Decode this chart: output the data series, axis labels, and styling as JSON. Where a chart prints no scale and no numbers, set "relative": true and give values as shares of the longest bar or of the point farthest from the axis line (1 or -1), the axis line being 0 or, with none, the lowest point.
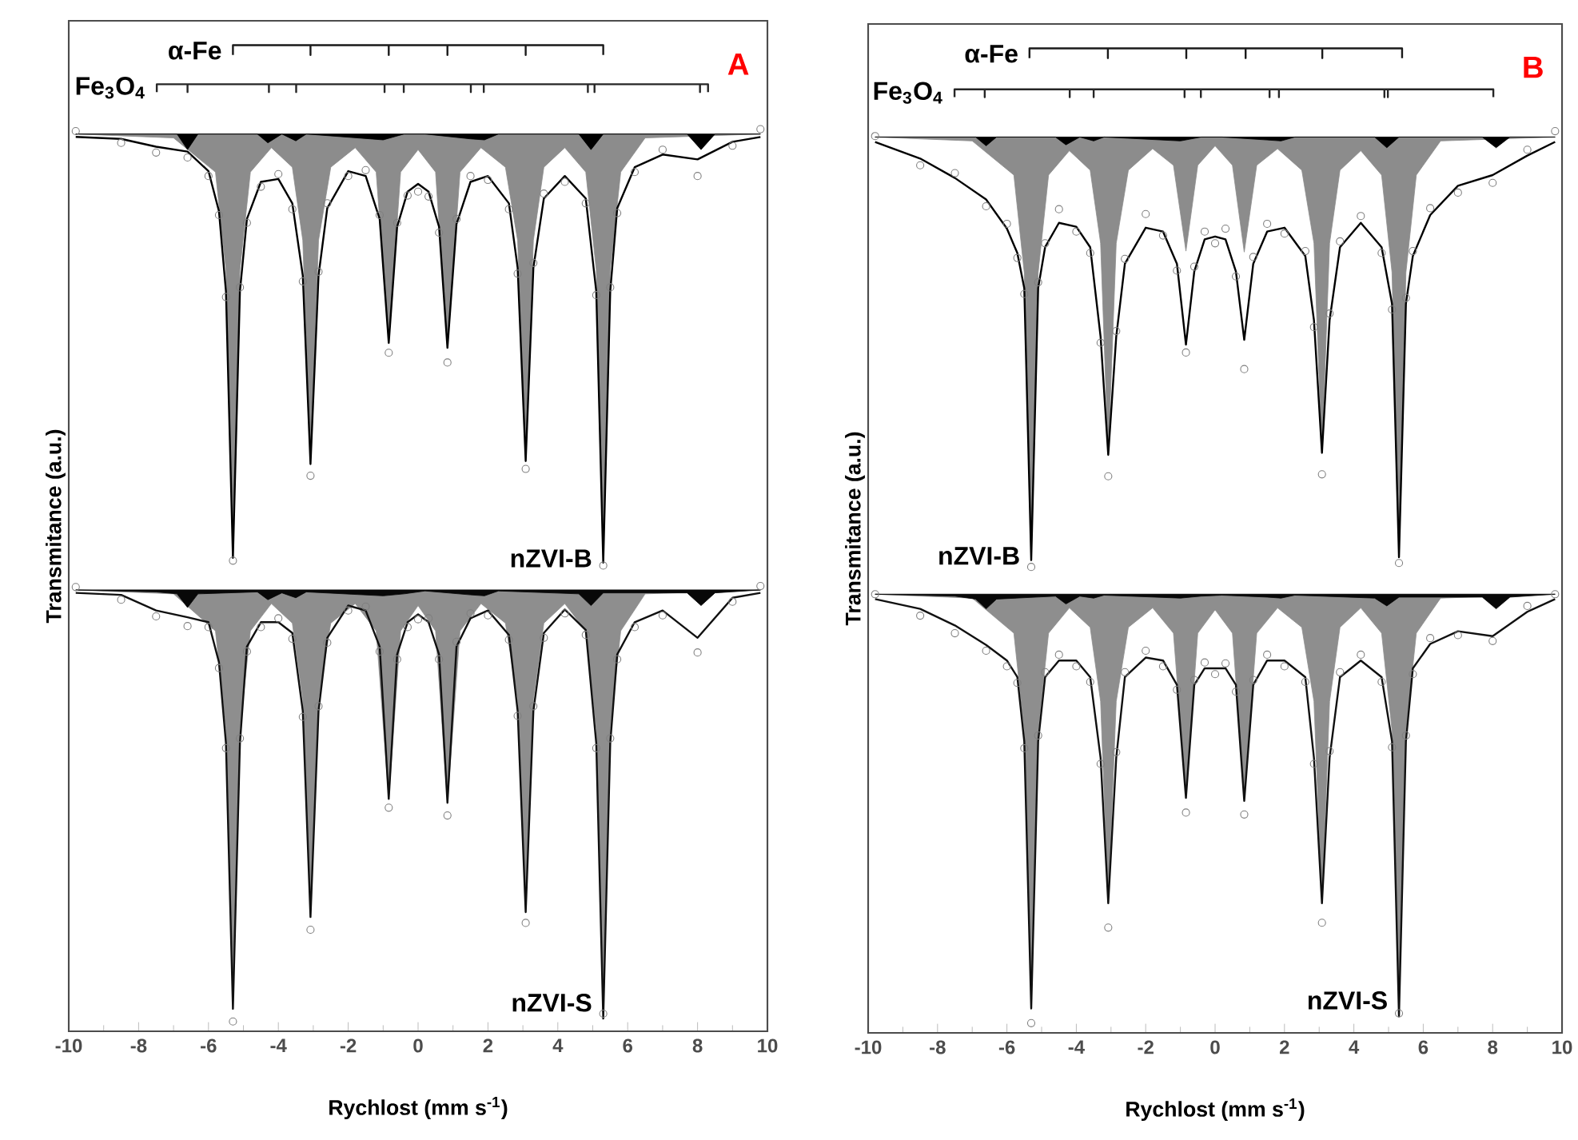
{
  "chart_data": [
    {
      "type": "line",
      "title": "A",
      "xlabel": "Rychlost (mm s$^{-1}$)",
      "ylabel": "Transmitance (a.u.)",
      "relative": true,
      "tick_labels": "x",
      "xlim": [
        -10,
        10
      ],
      "xticks": [
        -10,
        -8,
        -6,
        -4,
        -2,
        0,
        2,
        4,
        6,
        8,
        10
      ],
      "x": [
        -9.8,
        -8.5,
        -7.5,
        -6.6,
        -6.0,
        -5.7,
        -5.5,
        -5.3,
        -5.1,
        -4.9,
        -4.5,
        -4.0,
        -3.6,
        -3.3,
        -3.08,
        -2.85,
        -2.6,
        -2.0,
        -1.5,
        -1.1,
        -0.84,
        -0.6,
        -0.3,
        0,
        0.3,
        0.6,
        0.84,
        1.1,
        1.5,
        2.0,
        2.6,
        2.85,
        3.08,
        3.3,
        3.6,
        4.2,
        4.8,
        5.1,
        5.3,
        5.5,
        5.7,
        6.2,
        7.0,
        8.0,
        9.0,
        9.8
      ],
      "series": [
        {
          "name": "α-Fe",
          "type": "line",
          "marker": "none",
          "color": "#1a1a1a",
          "x": [
            -5.3,
            -5.3,
            -3.08,
            -3.08,
            -3.08,
            -0.84,
            -0.84,
            -0.84,
            0.84,
            0.84,
            0.84,
            3.08,
            3.08,
            3.08,
            5.3,
            5.3
          ],
          "values": [
            0.99,
            1,
            1,
            0.99,
            1,
            1,
            0.99,
            1,
            1,
            0.99,
            1,
            1,
            0.99,
            1,
            1,
            0.99
          ]
        },
        {
          "name": "Fe$_{3}$O$_{4}$",
          "type": "line",
          "marker": "none",
          "color": "#262626",
          "x": [
            -7.48,
            -7.48,
            -6.6,
            -6.6,
            -6.6,
            -4.27,
            -4.27,
            -4.27,
            -3.49,
            -3.49,
            -3.49,
            -0.96,
            -0.96,
            -0.96,
            -0.41,
            -0.41,
            -0.41,
            1.51,
            1.51,
            1.51,
            1.88,
            1.88,
            1.88,
            4.86,
            4.86,
            4.86,
            5.05,
            5.05,
            5.05,
            8.07,
            8.07,
            8.07,
            8.3,
            8.3
          ],
          "values": [
            0.952,
            0.96,
            0.96,
            0.952,
            0.96,
            0.96,
            0.952,
            0.96,
            0.96,
            0.952,
            0.96,
            0.96,
            0.952,
            0.96,
            0.96,
            0.952,
            0.96,
            0.96,
            0.952,
            0.96,
            0.96,
            0.952,
            0.96,
            0.96,
            0.952,
            0.96,
            0.96,
            0.952,
            0.96,
            0.96,
            0.952,
            0.96,
            0.96,
            0.952
          ]
        },
        {
          "type": "area",
          "color": "#8c8c8c",
          "x": [
            -9.8,
            -7.0,
            -5.8,
            -5.5,
            -5.3,
            -5.1,
            -4.8,
            -4.2,
            -3.6,
            -3.3,
            -3.08,
            -2.85,
            -2.5,
            -1.8,
            -1.2,
            -0.84,
            -0.5,
            0,
            0.5,
            0.84,
            1.2,
            1.8,
            2.5,
            2.85,
            3.08,
            3.3,
            3.6,
            4.2,
            4.8,
            5.1,
            5.3,
            5.5,
            5.8,
            6.5,
            9.8
          ],
          "values": [
            0.909,
            0.905,
            0.87,
            0.77,
            0.475,
            0.77,
            0.87,
            0.895,
            0.875,
            0.8,
            0.571,
            0.8,
            0.875,
            0.895,
            0.87,
            0.695,
            0.87,
            0.893,
            0.87,
            0.69,
            0.87,
            0.895,
            0.875,
            0.8,
            0.574,
            0.8,
            0.875,
            0.895,
            0.87,
            0.77,
            0.47,
            0.77,
            0.87,
            0.905,
            0.909
          ]
        },
        {
          "type": "area",
          "color": "#000000",
          "x": [
            -9.8,
            -7.5,
            -6.9,
            -6.6,
            -6.3,
            -4.6,
            -4.3,
            -3.9,
            -3.5,
            -3.2,
            -1.0,
            -0.4,
            0.2,
            1.5,
            1.9,
            2.3,
            4.6,
            4.95,
            5.3,
            7.7,
            8.1,
            8.5,
            9.8
          ],
          "values": [
            0.909,
            0.909,
            0.909,
            0.893,
            0.909,
            0.909,
            0.9,
            0.909,
            0.902,
            0.909,
            0.903,
            0.909,
            0.909,
            0.904,
            0.903,
            0.909,
            0.909,
            0.893,
            0.909,
            0.909,
            0.893,
            0.909,
            0.909
          ]
        },
        {
          "type": "scatter",
          "marker": "circle",
          "color": "#7f7f7f",
          "values": [
            0.912,
            0.9,
            0.89,
            0.885,
            0.866,
            0.826,
            0.742,
            0.472,
            0.752,
            0.818,
            0.855,
            0.868,
            0.832,
            0.758,
            0.559,
            0.768,
            0.838,
            0.866,
            0.872,
            0.826,
            0.685,
            0.818,
            0.846,
            0.85,
            0.845,
            0.808,
            0.675,
            0.822,
            0.866,
            0.862,
            0.832,
            0.766,
            0.566,
            0.777,
            0.848,
            0.86,
            0.838,
            0.744,
            0.467,
            0.752,
            0.828,
            0.87,
            0.893,
            0.866,
            0.897,
            0.914
          ]
        },
        {
          "name": "nZVI-B",
          "marker": "none",
          "color": "#000000",
          "values": [
            0.906,
            0.904,
            0.896,
            0.891,
            0.871,
            0.83,
            0.748,
            0.475,
            0.748,
            0.822,
            0.86,
            0.863,
            0.838,
            0.764,
            0.571,
            0.764,
            0.833,
            0.871,
            0.866,
            0.822,
            0.695,
            0.814,
            0.85,
            0.858,
            0.85,
            0.814,
            0.69,
            0.817,
            0.86,
            0.866,
            0.838,
            0.772,
            0.574,
            0.772,
            0.843,
            0.866,
            0.843,
            0.748,
            0.47,
            0.748,
            0.833,
            0.875,
            0.888,
            0.883,
            0.901,
            0.906
          ]
        },
        {
          "type": "area",
          "color": "#8e8e8e",
          "x": [
            -9.8,
            -7.0,
            -5.8,
            -5.5,
            -5.3,
            -5.1,
            -4.8,
            -4.2,
            -3.6,
            -3.3,
            -3.08,
            -2.85,
            -2.5,
            -1.8,
            -1.2,
            -0.84,
            -0.5,
            0,
            0.5,
            0.84,
            1.2,
            1.8,
            2.5,
            2.85,
            3.08,
            3.3,
            3.6,
            4.2,
            4.8,
            5.1,
            5.3,
            5.5,
            5.8,
            6.5,
            9.8
          ],
          "values": [
            0.442,
            0.438,
            0.4,
            0.3,
            0.013,
            0.3,
            0.4,
            0.428,
            0.408,
            0.33,
            0.107,
            0.33,
            0.408,
            0.428,
            0.4,
            0.228,
            0.4,
            0.426,
            0.4,
            0.224,
            0.4,
            0.428,
            0.408,
            0.33,
            0.112,
            0.33,
            0.408,
            0.428,
            0.4,
            0.3,
            0.003,
            0.3,
            0.4,
            0.438,
            0.442
          ]
        },
        {
          "type": "area",
          "color": "#080808",
          "x": [
            -9.8,
            -7.5,
            -6.9,
            -6.6,
            -6.3,
            -4.6,
            -4.3,
            -3.9,
            -3.5,
            -3.2,
            -1.0,
            -0.4,
            0.2,
            1.5,
            1.9,
            2.3,
            4.6,
            4.95,
            5.3,
            7.7,
            8.1,
            8.5,
            9.8
          ],
          "values": [
            0.442,
            0.44,
            0.438,
            0.424,
            0.438,
            0.44,
            0.432,
            0.439,
            0.434,
            0.44,
            0.436,
            0.438,
            0.441,
            0.437,
            0.436,
            0.441,
            0.438,
            0.426,
            0.439,
            0.439,
            0.426,
            0.439,
            0.442
          ]
        },
        {
          "type": "scatter",
          "marker": "circle",
          "color": "#7f7f7f",
          "values": [
            0.445,
            0.432,
            0.415,
            0.405,
            0.404,
            0.362,
            0.28,
            0,
            0.29,
            0.379,
            0.404,
            0.413,
            0.392,
            0.312,
            0.094,
            0.323,
            0.388,
            0.421,
            0.425,
            0.379,
            0.219,
            0.371,
            0.404,
            0.412,
            0.413,
            0.371,
            0.211,
            0.389,
            0.418,
            0.416,
            0.391,
            0.313,
            0.101,
            0.323,
            0.393,
            0.418,
            0.396,
            0.28,
            0.008,
            0.29,
            0.371,
            0.404,
            0.416,
            0.378,
            0.43,
            0.446
          ]
        },
        {
          "name": "nZVI-S",
          "marker": "none",
          "color": "#101010",
          "values": [
            0.439,
            0.437,
            0.421,
            0.414,
            0.409,
            0.368,
            0.285,
            0.013,
            0.285,
            0.384,
            0.409,
            0.409,
            0.398,
            0.318,
            0.107,
            0.318,
            0.393,
            0.426,
            0.421,
            0.384,
            0.228,
            0.376,
            0.409,
            0.417,
            0.409,
            0.376,
            0.224,
            0.384,
            0.413,
            0.421,
            0.396,
            0.318,
            0.112,
            0.318,
            0.398,
            0.422,
            0.401,
            0.285,
            0.003,
            0.285,
            0.376,
            0.409,
            0.421,
            0.393,
            0.434,
            0.439
          ]
        }
      ]
    },
    {
      "type": "line",
      "title": "B",
      "xlabel": "Rychlost (mm s$^{-1}$)",
      "ylabel": "Transmitance (a.u.)",
      "relative": true,
      "tick_labels": "x",
      "xlim": [
        -10,
        10
      ],
      "xticks": [
        -10,
        -8,
        -6,
        -4,
        -2,
        0,
        2,
        4,
        6,
        8,
        10
      ],
      "x": [
        -9.8,
        -8.5,
        -7.5,
        -6.6,
        -6.0,
        -5.7,
        -5.5,
        -5.3,
        -5.1,
        -4.9,
        -4.5,
        -4.0,
        -3.6,
        -3.3,
        -3.08,
        -2.85,
        -2.6,
        -2.0,
        -1.5,
        -1.1,
        -0.84,
        -0.6,
        -0.3,
        0,
        0.3,
        0.6,
        0.84,
        1.1,
        1.5,
        2.0,
        2.6,
        2.85,
        3.08,
        3.3,
        3.6,
        4.2,
        4.8,
        5.1,
        5.3,
        5.5,
        5.7,
        6.2,
        7.0,
        8.0,
        9.0,
        9.8
      ],
      "series": [
        {
          "name": "α-Fe",
          "type": "line",
          "marker": "none",
          "color": "#1a1a1a",
          "x": [
            -5.35,
            -5.35,
            -3.09,
            -3.09,
            -3.09,
            -0.83,
            -0.83,
            -0.83,
            0.88,
            0.88,
            0.88,
            3.09,
            3.09,
            3.09,
            5.39,
            5.39
          ],
          "values": [
            0.99,
            1,
            1,
            0.99,
            1,
            1,
            0.99,
            1,
            1,
            0.99,
            1,
            1,
            0.99,
            1,
            1,
            0.99
          ]
        },
        {
          "name": "Fe$_{3}$O$_{4}$",
          "type": "line",
          "marker": "none",
          "color": "#262626",
          "x": [
            -7.51,
            -7.51,
            -6.64,
            -6.64,
            -6.64,
            -4.19,
            -4.19,
            -4.19,
            -3.5,
            -3.5,
            -3.5,
            -0.88,
            -0.88,
            -0.88,
            -0.41,
            -0.41,
            -0.41,
            1.57,
            1.57,
            1.57,
            1.84,
            1.84,
            1.84,
            4.88,
            4.88,
            4.88,
            4.98,
            4.98,
            4.98,
            8.02,
            8.02
          ],
          "values": [
            0.95,
            0.958,
            0.958,
            0.95,
            0.958,
            0.958,
            0.95,
            0.958,
            0.958,
            0.95,
            0.958,
            0.958,
            0.95,
            0.958,
            0.958,
            0.95,
            0.958,
            0.958,
            0.95,
            0.958,
            0.958,
            0.95,
            0.958,
            0.958,
            0.95,
            0.958,
            0.958,
            0.95,
            0.958,
            0.958,
            0.95
          ]
        },
        {
          "type": "area",
          "color": "#8c8c8c",
          "x": [
            -9.8,
            -7.0,
            -5.8,
            -5.5,
            -5.3,
            -5.1,
            -4.8,
            -4.2,
            -3.6,
            -3.3,
            -3.08,
            -2.85,
            -2.5,
            -1.8,
            -1.2,
            -0.84,
            -0.5,
            0,
            0.5,
            0.84,
            1.2,
            1.8,
            2.5,
            2.85,
            3.08,
            3.3,
            3.6,
            4.2,
            4.8,
            5.1,
            5.3,
            5.5,
            5.8,
            6.5,
            9.8
          ],
          "values": [
            0.909,
            0.905,
            0.87,
            0.77,
            0.475,
            0.77,
            0.87,
            0.895,
            0.875,
            0.8,
            0.583,
            0.8,
            0.875,
            0.897,
            0.88,
            0.792,
            0.88,
            0.9,
            0.88,
            0.791,
            0.88,
            0.897,
            0.875,
            0.8,
            0.585,
            0.8,
            0.875,
            0.895,
            0.87,
            0.77,
            0.478,
            0.77,
            0.87,
            0.905,
            0.909
          ]
        },
        {
          "type": "area",
          "color": "#000000",
          "x": [
            -9.8,
            -7.5,
            -6.9,
            -6.6,
            -6.3,
            -4.6,
            -4.3,
            -3.9,
            -3.5,
            -3.2,
            -1.0,
            -0.4,
            0.2,
            1.5,
            1.9,
            2.3,
            4.6,
            4.95,
            5.3,
            7.7,
            8.1,
            8.5,
            9.8
          ],
          "values": [
            0.909,
            0.909,
            0.909,
            0.9,
            0.909,
            0.909,
            0.901,
            0.909,
            0.905,
            0.909,
            0.905,
            0.909,
            0.909,
            0.906,
            0.905,
            0.909,
            0.909,
            0.898,
            0.909,
            0.909,
            0.898,
            0.909,
            0.909
          ]
        },
        {
          "type": "scatter",
          "marker": "circle",
          "color": "#7f7f7f",
          "values": [
            0.91,
            0.88,
            0.872,
            0.838,
            0.82,
            0.785,
            0.748,
            0.468,
            0.76,
            0.8,
            0.835,
            0.812,
            0.79,
            0.698,
            0.561,
            0.71,
            0.784,
            0.83,
            0.808,
            0.772,
            0.688,
            0.776,
            0.812,
            0.8,
            0.815,
            0.766,
            0.671,
            0.786,
            0.82,
            0.81,
            0.792,
            0.714,
            0.563,
            0.728,
            0.802,
            0.828,
            0.79,
            0.732,
            0.472,
            0.744,
            0.792,
            0.836,
            0.852,
            0.862,
            0.896,
            0.915
          ]
        },
        {
          "name": "nZVI-B",
          "marker": "none",
          "color": "#000000",
          "values": [
            0.904,
            0.887,
            0.867,
            0.845,
            0.815,
            0.79,
            0.754,
            0.475,
            0.754,
            0.796,
            0.821,
            0.817,
            0.796,
            0.704,
            0.583,
            0.704,
            0.779,
            0.816,
            0.812,
            0.779,
            0.696,
            0.771,
            0.804,
            0.807,
            0.804,
            0.771,
            0.701,
            0.779,
            0.812,
            0.816,
            0.787,
            0.721,
            0.585,
            0.721,
            0.796,
            0.821,
            0.796,
            0.738,
            0.478,
            0.738,
            0.787,
            0.829,
            0.859,
            0.87,
            0.89,
            0.904
          ]
        },
        {
          "type": "area",
          "color": "#8e8e8e",
          "x": [
            -9.8,
            -7.0,
            -5.8,
            -5.5,
            -5.3,
            -5.1,
            -4.8,
            -4.2,
            -3.6,
            -3.3,
            -3.08,
            -2.85,
            -2.5,
            -1.8,
            -1.2,
            -0.84,
            -0.5,
            0,
            0.5,
            0.84,
            1.2,
            1.8,
            2.5,
            2.85,
            3.08,
            3.3,
            3.6,
            4.2,
            4.8,
            5.1,
            5.3,
            5.5,
            5.8,
            6.5,
            9.8
          ],
          "values": [
            0.44,
            0.436,
            0.4,
            0.3,
            0.015,
            0.3,
            0.4,
            0.426,
            0.406,
            0.33,
            0.123,
            0.33,
            0.406,
            0.426,
            0.4,
            0.234,
            0.4,
            0.424,
            0.4,
            0.234,
            0.4,
            0.426,
            0.406,
            0.33,
            0.123,
            0.33,
            0.406,
            0.426,
            0.4,
            0.3,
            0.01,
            0.3,
            0.4,
            0.436,
            0.44
          ]
        },
        {
          "type": "area",
          "color": "#080808",
          "x": [
            -9.8,
            -7.5,
            -6.9,
            -6.6,
            -6.3,
            -4.6,
            -4.3,
            -3.9,
            -3.5,
            -3.2,
            -1.0,
            -0.4,
            0.2,
            1.5,
            1.9,
            2.3,
            4.6,
            4.95,
            5.3,
            7.7,
            8.1,
            8.5,
            9.8
          ],
          "values": [
            0.44,
            0.438,
            0.435,
            0.425,
            0.435,
            0.438,
            0.43,
            0.438,
            0.436,
            0.439,
            0.436,
            0.438,
            0.439,
            0.437,
            0.436,
            0.439,
            0.436,
            0.428,
            0.437,
            0.437,
            0.425,
            0.437,
            0.44
          ]
        },
        {
          "type": "scatter",
          "marker": "circle",
          "color": "#7f7f7f",
          "values": [
            0.44,
            0.418,
            0.4,
            0.382,
            0.366,
            0.349,
            0.282,
            0,
            0.295,
            0.36,
            0.378,
            0.366,
            0.35,
            0.266,
            0.098,
            0.278,
            0.36,
            0.382,
            0.366,
            0.342,
            0.216,
            0.352,
            0.37,
            0.358,
            0.369,
            0.34,
            0.214,
            0.352,
            0.378,
            0.366,
            0.35,
            0.266,
            0.103,
            0.279,
            0.36,
            0.378,
            0.35,
            0.283,
            0.01,
            0.295,
            0.358,
            0.395,
            0.398,
            0.392,
            0.428,
            0.44
          ]
        },
        {
          "name": "nZVI-S",
          "marker": "none",
          "color": "#101010",
          "values": [
            0.435,
            0.425,
            0.408,
            0.388,
            0.372,
            0.355,
            0.289,
            0.015,
            0.289,
            0.355,
            0.372,
            0.372,
            0.355,
            0.272,
            0.123,
            0.272,
            0.355,
            0.375,
            0.372,
            0.347,
            0.231,
            0.347,
            0.364,
            0.364,
            0.364,
            0.347,
            0.228,
            0.347,
            0.372,
            0.372,
            0.355,
            0.272,
            0.123,
            0.272,
            0.355,
            0.372,
            0.355,
            0.289,
            0.007,
            0.289,
            0.364,
            0.389,
            0.402,
            0.397,
            0.422,
            0.435
          ]
        }
      ]
    }
  ]
}
